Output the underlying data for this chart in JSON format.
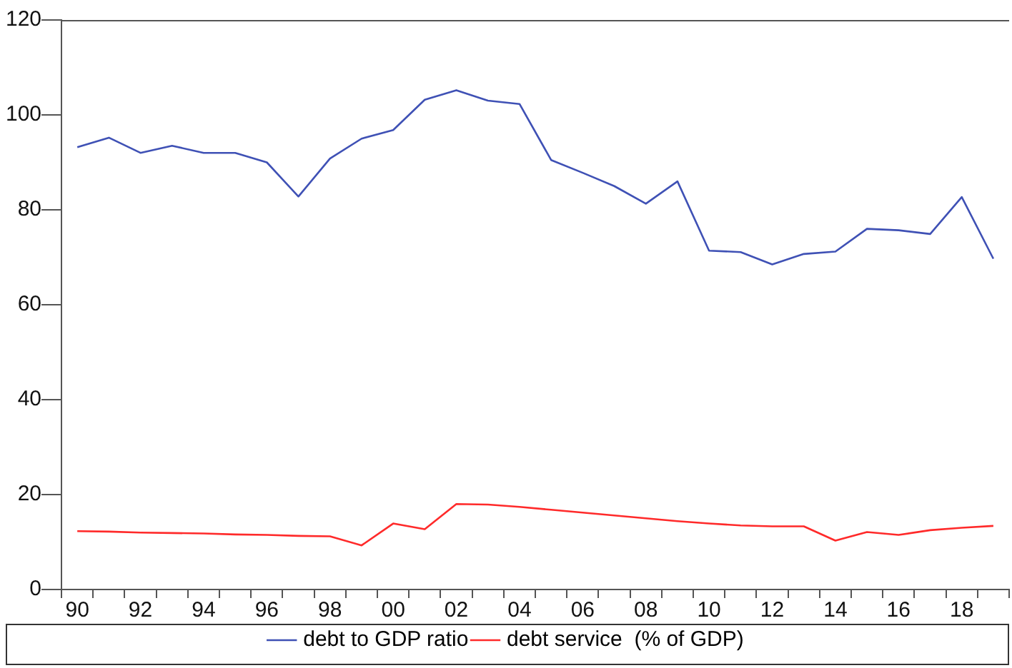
{
  "chart_data": {
    "type": "line",
    "categories": [
      "90",
      null,
      "92",
      null,
      "94",
      null,
      "96",
      null,
      "98",
      null,
      "00",
      null,
      "02",
      null,
      "04",
      null,
      "06",
      null,
      "08",
      null,
      "10",
      null,
      "12",
      null,
      "14",
      null,
      "16",
      null,
      "18",
      null
    ],
    "series": [
      {
        "name": "debt to GDP ratio",
        "color": "#3f51b5",
        "values": [
          93.2,
          95.2,
          92.0,
          93.5,
          92.0,
          92.0,
          90.0,
          82.8,
          90.8,
          95.0,
          96.8,
          103.2,
          105.2,
          103.0,
          102.3,
          90.5,
          87.8,
          85.0,
          81.3,
          86.0,
          71.4,
          71.1,
          68.5,
          70.7,
          71.2,
          76.0,
          75.7,
          74.9,
          82.7,
          69.7
        ]
      },
      {
        "name": "debt service  (% of GDP)",
        "color": "#ff2a2a",
        "values": [
          12.3,
          12.2,
          12.0,
          11.9,
          11.8,
          11.6,
          11.5,
          11.3,
          11.2,
          9.3,
          13.9,
          12.7,
          18.0,
          17.9,
          17.4,
          16.8,
          16.2,
          15.6,
          15.0,
          14.4,
          13.9,
          13.5,
          13.3,
          13.3,
          10.3,
          12.1,
          11.5,
          12.5,
          13.0,
          13.4
        ]
      }
    ],
    "ylim": [
      0,
      120
    ],
    "yticks": [
      0,
      20,
      40,
      60,
      80,
      100,
      120
    ],
    "grid": false,
    "legend": "bottom",
    "marker": "none",
    "line_style": "solid"
  }
}
